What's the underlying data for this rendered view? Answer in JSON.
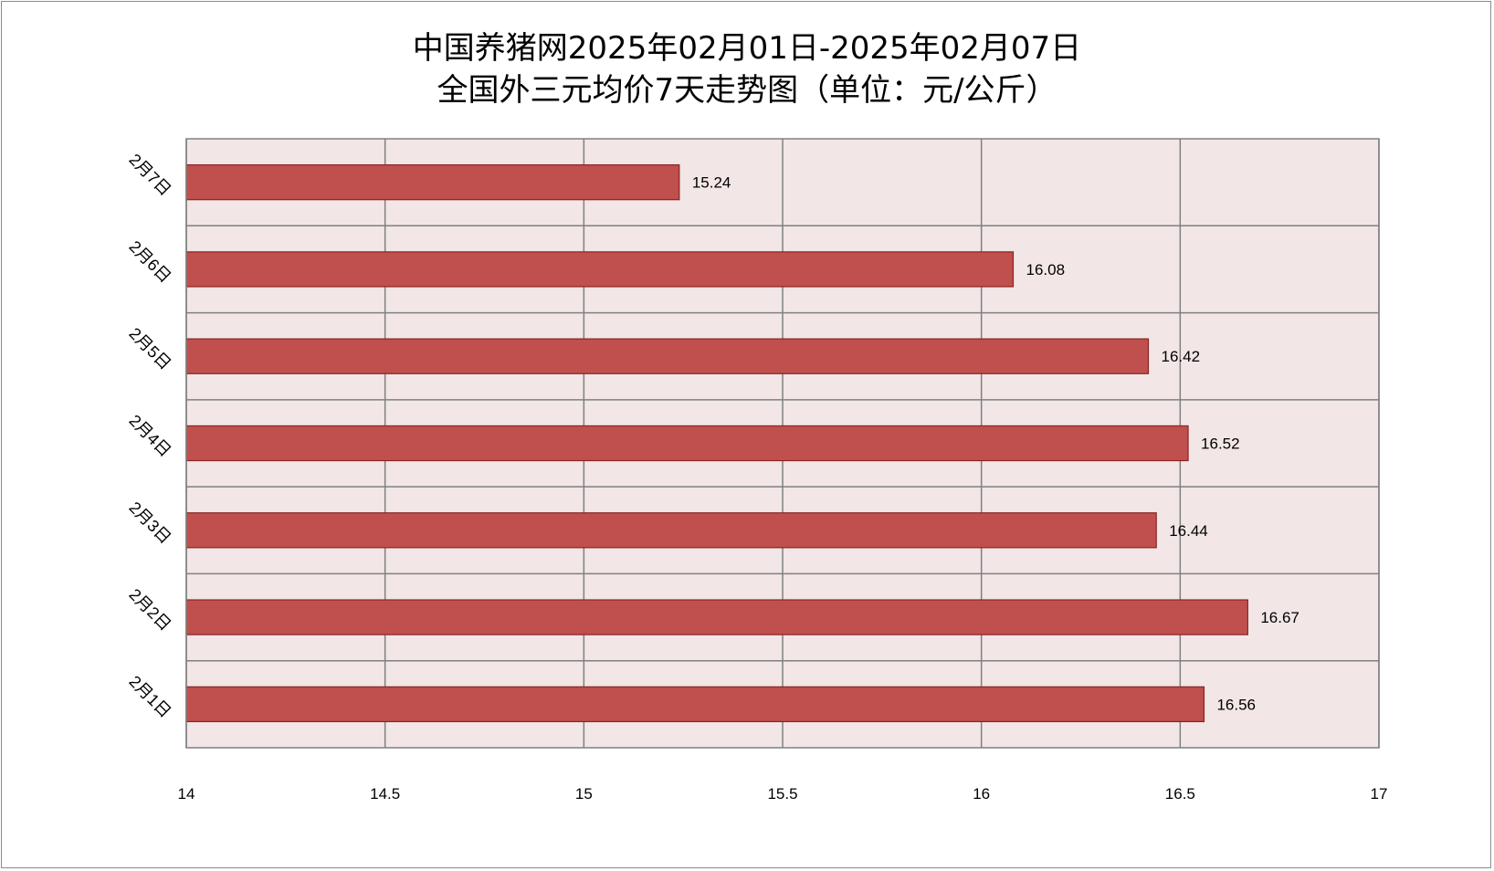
{
  "chart_data": {
    "type": "bar",
    "orientation": "horizontal",
    "title_line1": "中国养猪网2025年02月01日-2025年02月07日",
    "title_line2": "全国外三元均价7天走势图（单位：元/公斤）",
    "categories": [
      "2月1日",
      "2月2日",
      "2月3日",
      "2月4日",
      "2月5日",
      "2月6日",
      "2月7日"
    ],
    "values": [
      16.56,
      16.67,
      16.44,
      16.52,
      16.42,
      16.08,
      15.24
    ],
    "data_labels": [
      "16.56",
      "16.67",
      "16.44",
      "16.52",
      "16.42",
      "16.08",
      "15.24"
    ],
    "xlim": [
      14,
      17
    ],
    "xticks": [
      "14",
      "14.5",
      "15",
      "15.5",
      "16",
      "16.5",
      "17"
    ],
    "grid": true,
    "legend": "none",
    "colors": {
      "bar_fill": "#c0504d",
      "bar_edge": "#8b2323",
      "plot_bg": "#f2e6e6",
      "grid": "#808080"
    }
  }
}
